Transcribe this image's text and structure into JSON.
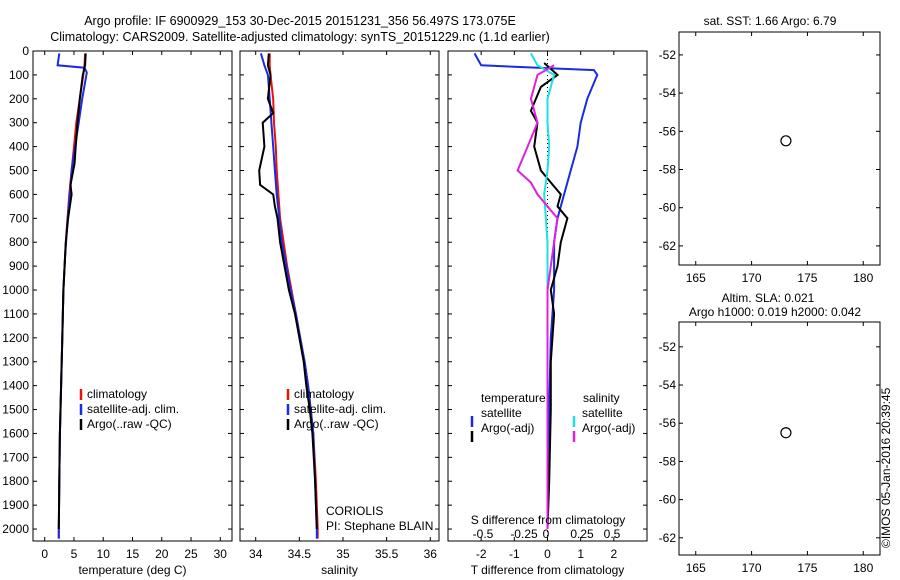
{
  "header": {
    "line1": "Argo profile: IF 6900929_153 30-Dec-2015 20151231_356 56.497S 173.075E",
    "line2": "Climatology: CARS2009. Satellite-adjusted climatology: synTS_20151229.nc (1.1d earlier)"
  },
  "colors": {
    "red": "#e8120c",
    "blue": "#1a2be6",
    "black": "#000000",
    "cyan": "#1ee0e0",
    "magenta": "#e020e0"
  },
  "chart_data": [
    {
      "type": "line",
      "xlabel": "temperature (deg C)",
      "xticks": [
        0,
        5,
        10,
        15,
        20,
        25,
        30
      ],
      "xlim": [
        -2,
        32
      ],
      "ylim": [
        2050,
        0
      ],
      "yticks": [
        0,
        100,
        200,
        300,
        400,
        500,
        600,
        700,
        800,
        900,
        1000,
        1100,
        1200,
        1300,
        1400,
        1500,
        1600,
        1700,
        1800,
        1900,
        2000
      ],
      "legend": [
        "climatology",
        "satellite-adj. clim.",
        "Argo(..raw -QC)"
      ],
      "legend_position": "lower-middle",
      "series": [
        {
          "name": "climatology",
          "color": "#e8120c",
          "points": [
            [
              6.9,
              10
            ],
            [
              6.8,
              60
            ],
            [
              6.6,
              100
            ],
            [
              6.0,
              200
            ],
            [
              5.4,
              300
            ],
            [
              5.0,
              400
            ],
            [
              4.6,
              500
            ],
            [
              4.2,
              600
            ],
            [
              3.9,
              700
            ],
            [
              3.6,
              800
            ],
            [
              3.4,
              900
            ],
            [
              3.2,
              1000
            ],
            [
              3.0,
              1200
            ],
            [
              2.8,
              1400
            ],
            [
              2.6,
              1600
            ],
            [
              2.5,
              1800
            ],
            [
              2.4,
              2000
            ],
            [
              2.4,
              2040
            ]
          ]
        },
        {
          "name": "satellite-adj. clim.",
          "color": "#1a2be6",
          "points": [
            [
              2.5,
              10
            ],
            [
              2.2,
              60
            ],
            [
              6.8,
              70
            ],
            [
              7.2,
              90
            ],
            [
              6.4,
              200
            ],
            [
              5.8,
              300
            ],
            [
              5.2,
              400
            ],
            [
              4.6,
              500
            ],
            [
              4.4,
              570
            ],
            [
              4.1,
              650
            ],
            [
              3.8,
              750
            ],
            [
              3.5,
              850
            ],
            [
              3.2,
              1000
            ],
            [
              3.0,
              1200
            ],
            [
              2.8,
              1400
            ],
            [
              2.6,
              1600
            ],
            [
              2.5,
              1800
            ],
            [
              2.4,
              2000
            ],
            [
              2.4,
              2040
            ]
          ]
        },
        {
          "name": "Argo(..raw -QC)",
          "color": "#000000",
          "points": [
            [
              7.0,
              10
            ],
            [
              6.9,
              60
            ],
            [
              6.5,
              100
            ],
            [
              6.0,
              200
            ],
            [
              5.6,
              300
            ],
            [
              5.3,
              400
            ],
            [
              5.1,
              470
            ],
            [
              4.4,
              560
            ],
            [
              4.6,
              600
            ],
            [
              4.0,
              700
            ],
            [
              3.6,
              800
            ],
            [
              3.4,
              900
            ],
            [
              3.2,
              1000
            ],
            [
              3.0,
              1200
            ],
            [
              2.8,
              1400
            ],
            [
              2.6,
              1600
            ],
            [
              2.5,
              1800
            ],
            [
              2.4,
              2000
            ]
          ]
        }
      ]
    },
    {
      "type": "line",
      "xlabel": "salinity",
      "xticks": [
        34,
        34.5,
        35,
        35.5,
        36
      ],
      "xtick_labels": [
        "34",
        "34.5",
        "35",
        "35.5",
        "36"
      ],
      "xlim": [
        33.82,
        36.1
      ],
      "ylim": [
        2050,
        0
      ],
      "legend": [
        "climatology",
        "satellite-adj. clim.",
        "Argo(..raw -QC)"
      ],
      "legend_position": "lower-middle",
      "annotation": [
        "CORIOLIS",
        "PI: Stephane BLAIN"
      ],
      "series": [
        {
          "name": "climatology",
          "color": "#e8120c",
          "points": [
            [
              34.16,
              10
            ],
            [
              34.16,
              60
            ],
            [
              34.17,
              100
            ],
            [
              34.2,
              200
            ],
            [
              34.21,
              300
            ],
            [
              34.23,
              400
            ],
            [
              34.24,
              500
            ],
            [
              34.26,
              600
            ],
            [
              34.28,
              700
            ],
            [
              34.32,
              800
            ],
            [
              34.36,
              900
            ],
            [
              34.41,
              1000
            ],
            [
              34.46,
              1100
            ],
            [
              34.51,
              1200
            ],
            [
              34.56,
              1300
            ],
            [
              34.6,
              1400
            ],
            [
              34.63,
              1500
            ],
            [
              34.66,
              1600
            ],
            [
              34.69,
              1800
            ],
            [
              34.71,
              2000
            ],
            [
              34.71,
              2040
            ]
          ]
        },
        {
          "name": "satellite-adj. clim.",
          "color": "#1a2be6",
          "points": [
            [
              34.06,
              10
            ],
            [
              34.1,
              60
            ],
            [
              34.14,
              100
            ],
            [
              34.16,
              200
            ],
            [
              34.18,
              300
            ],
            [
              34.2,
              400
            ],
            [
              34.22,
              500
            ],
            [
              34.24,
              600
            ],
            [
              34.27,
              700
            ],
            [
              34.3,
              800
            ],
            [
              34.35,
              900
            ],
            [
              34.4,
              1000
            ],
            [
              34.46,
              1100
            ],
            [
              34.51,
              1200
            ],
            [
              34.56,
              1300
            ],
            [
              34.6,
              1400
            ],
            [
              34.63,
              1500
            ],
            [
              34.66,
              1600
            ],
            [
              34.68,
              1800
            ],
            [
              34.7,
              2000
            ],
            [
              34.7,
              2040
            ]
          ]
        },
        {
          "name": "Argo(..raw -QC)",
          "color": "#000000",
          "points": [
            [
              34.15,
              10
            ],
            [
              34.14,
              60
            ],
            [
              34.17,
              100
            ],
            [
              34.14,
              200
            ],
            [
              34.2,
              260
            ],
            [
              34.08,
              300
            ],
            [
              34.1,
              400
            ],
            [
              34.04,
              500
            ],
            [
              34.05,
              560
            ],
            [
              34.2,
              600
            ],
            [
              34.22,
              650
            ],
            [
              34.25,
              700
            ],
            [
              34.28,
              800
            ],
            [
              34.33,
              900
            ],
            [
              34.38,
              1000
            ],
            [
              34.45,
              1100
            ],
            [
              34.5,
              1200
            ],
            [
              34.55,
              1300
            ],
            [
              34.58,
              1400
            ],
            [
              34.62,
              1500
            ],
            [
              34.65,
              1600
            ],
            [
              34.68,
              1800
            ],
            [
              34.7,
              2000
            ]
          ]
        }
      ]
    },
    {
      "type": "line",
      "xlabel": "T difference from climatology",
      "xticks": [
        -2,
        -1,
        0,
        1,
        2
      ],
      "xlim": [
        -3.0,
        3.0
      ],
      "top_axis_label": "S difference from climatology",
      "top_axis_ticks": [
        "-0.5",
        "-0.25",
        "0",
        "0.25",
        "0.5"
      ],
      "ylim": [
        2050,
        0
      ],
      "legend_left": [
        "temperature",
        "satellite",
        "Argo(-adj)"
      ],
      "legend_right": [
        "salinity",
        "satellite",
        "Argo(-adj)"
      ],
      "series": [
        {
          "name": "temperature satellite",
          "color": "#1a2be6",
          "points": [
            [
              -2.2,
              10
            ],
            [
              -2.0,
              60
            ],
            [
              1.4,
              80
            ],
            [
              1.5,
              100
            ],
            [
              1.2,
              200
            ],
            [
              1.0,
              300
            ],
            [
              0.9,
              400
            ],
            [
              0.7,
              500
            ],
            [
              0.5,
              600
            ],
            [
              0.3,
              700
            ],
            [
              0.2,
              800
            ],
            [
              0.2,
              1000
            ],
            [
              0.1,
              1200
            ],
            [
              0.05,
              1500
            ],
            [
              0.0,
              2000
            ]
          ]
        },
        {
          "name": "temperature Argo(-adj)",
          "color": "#000000",
          "points": [
            [
              -0.1,
              50
            ],
            [
              0.3,
              100
            ],
            [
              -0.2,
              150
            ],
            [
              -0.5,
              250
            ],
            [
              -0.3,
              300
            ],
            [
              -0.4,
              400
            ],
            [
              -0.2,
              500
            ],
            [
              0.1,
              550
            ],
            [
              0.4,
              600
            ],
            [
              0.3,
              650
            ],
            [
              0.6,
              700
            ],
            [
              0.4,
              800
            ],
            [
              0.3,
              900
            ],
            [
              0.1,
              1000
            ],
            [
              0.2,
              1100
            ],
            [
              0.1,
              1300
            ],
            [
              0.1,
              1500
            ],
            [
              0.05,
              1800
            ],
            [
              0.0,
              2000
            ]
          ]
        },
        {
          "name": "salinity satellite",
          "color": "#1ee0e0",
          "points": [
            [
              -0.5,
              10
            ],
            [
              -0.3,
              60
            ],
            [
              0.2,
              100
            ],
            [
              0.0,
              200
            ],
            [
              0.0,
              300
            ],
            [
              0.05,
              400
            ],
            [
              0.0,
              500
            ],
            [
              -0.1,
              600
            ],
            [
              0.0,
              800
            ],
            [
              0.0,
              1000
            ],
            [
              0.0,
              1200
            ],
            [
              0.0,
              1500
            ],
            [
              0.0,
              2000
            ]
          ]
        },
        {
          "name": "salinity Argo(-adj)",
          "color": "#e020e0",
          "points": [
            [
              0.2,
              60
            ],
            [
              -0.3,
              100
            ],
            [
              -0.5,
              200
            ],
            [
              -0.3,
              300
            ],
            [
              -0.6,
              400
            ],
            [
              -0.9,
              500
            ],
            [
              -0.5,
              550
            ],
            [
              -0.3,
              600
            ],
            [
              0.0,
              650
            ],
            [
              0.3,
              700
            ],
            [
              0.2,
              800
            ],
            [
              0.1,
              900
            ],
            [
              0.0,
              1000
            ],
            [
              0.0,
              1200
            ],
            [
              0.0,
              1500
            ],
            [
              0.0,
              2000
            ]
          ]
        }
      ]
    },
    {
      "type": "heatmap",
      "title": "sat. SST: 1.66 Argo: 6.79",
      "xticks": [
        165,
        170,
        175,
        180
      ],
      "yticks": [
        -52,
        -54,
        -56,
        -58,
        -60,
        -62
      ],
      "xlim": [
        163.5,
        181.5
      ],
      "ylim": [
        -63,
        -50.8
      ],
      "data_extent": {
        "lon": [
          164.2,
          180
        ],
        "lat": [
          -60.2,
          -50.8
        ]
      },
      "marker": {
        "lon": 173.075,
        "lat": -56.497
      }
    },
    {
      "type": "heatmap",
      "title": "Altim. SLA: 0.021",
      "subtitle": "Argo h1000: 0.019 h2000: 0.042",
      "xticks": [
        165,
        170,
        175,
        180
      ],
      "yticks": [
        -52,
        -54,
        -56,
        -58,
        -60,
        -62
      ],
      "xlim": [
        163.5,
        181.5
      ],
      "ylim": [
        -62.9,
        -50.7
      ],
      "data_extent": {
        "lon": [
          164.2,
          180
        ],
        "lat": [
          -60,
          -50.7
        ]
      },
      "marker": {
        "lon": 173.075,
        "lat": -56.497
      }
    }
  ],
  "credit": "©IMOS 05-Jan-2016 20:39:45"
}
